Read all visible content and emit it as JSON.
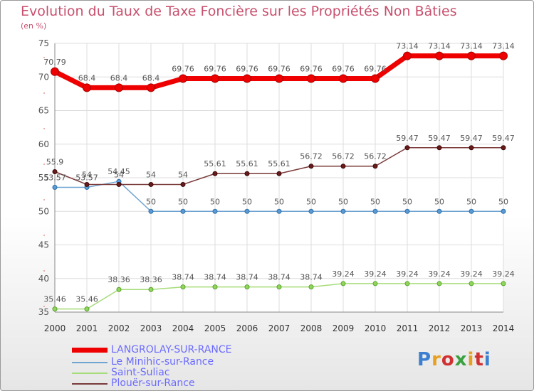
{
  "title": "Evolution du Taux de Taxe Foncière sur les Propriétés Non Bâties",
  "unit_label": "(en %)",
  "logo_text": "Proxiti",
  "chart_data": {
    "type": "line",
    "x": [
      "2000",
      "2001",
      "2002",
      "2003",
      "2004",
      "2005",
      "2006",
      "2007",
      "2008",
      "2009",
      "2010",
      "2011",
      "2012",
      "2013",
      "2014"
    ],
    "ylim": [
      35,
      75
    ],
    "yticks": [
      35,
      40,
      45,
      50,
      55,
      60,
      65,
      70,
      75
    ],
    "grid": true,
    "legend_position": "bottom-left",
    "series": [
      {
        "name": "LANGROLAY-SUR-RANCE",
        "color": "#ee0000",
        "width": 7,
        "marker_fill": "#ee0000",
        "marker_stroke": "#aa0000",
        "values": [
          70.79,
          68.4,
          68.4,
          68.4,
          69.76,
          69.76,
          69.76,
          69.76,
          69.76,
          69.76,
          69.76,
          73.14,
          73.14,
          73.14,
          73.14
        ],
        "labels": [
          "70.79",
          "68.4",
          "68.4",
          "68.4",
          "69.76",
          "69.76",
          "69.76",
          "69.76",
          "69.76",
          "69.76",
          "69.76",
          "73.14",
          "73.14",
          "73.14",
          "73.14"
        ]
      },
      {
        "name": "Le Minihic-sur-Rance",
        "color": "#6fa3d0",
        "width": 1.5,
        "marker_fill": "#5a9ad6",
        "marker_stroke": "#2e6ea6",
        "values": [
          53.57,
          53.57,
          54.45,
          50,
          50,
          50,
          50,
          50,
          50,
          50,
          50,
          50,
          50,
          50,
          50
        ],
        "labels": [
          "53.57",
          "53.57",
          "54.45",
          "50",
          "50",
          "50",
          "50",
          "50",
          "50",
          "50",
          "50",
          "50",
          "50",
          "50",
          "50"
        ]
      },
      {
        "name": "Saint-Suliac",
        "color": "#a6dc7a",
        "width": 1.5,
        "marker_fill": "#8fd65a",
        "marker_stroke": "#5aa030",
        "values": [
          35.46,
          35.46,
          38.36,
          38.36,
          38.74,
          38.74,
          38.74,
          38.74,
          38.74,
          39.24,
          39.24,
          39.24,
          39.24,
          39.24,
          39.24
        ],
        "labels": [
          "35.46",
          "35.46",
          "38.36",
          "38.36",
          "38.74",
          "38.74",
          "38.74",
          "38.74",
          "38.74",
          "39.24",
          "39.24",
          "39.24",
          "39.24",
          "39.24",
          "39.24"
        ]
      },
      {
        "name": "Plouër-sur-Rance",
        "color": "#7a3a3a",
        "width": 1.5,
        "marker_fill": "#6a1a1a",
        "marker_stroke": "#3a0a0a",
        "values": [
          55.9,
          54,
          54,
          54,
          54,
          55.61,
          55.61,
          55.61,
          56.72,
          56.72,
          56.72,
          59.47,
          59.47,
          59.47,
          59.47
        ],
        "labels": [
          "55.9",
          "54",
          "54",
          "54",
          "54",
          "55.61",
          "55.61",
          "55.61",
          "56.72",
          "56.72",
          "56.72",
          "59.47",
          "59.47",
          "59.47",
          "59.47"
        ]
      }
    ]
  }
}
